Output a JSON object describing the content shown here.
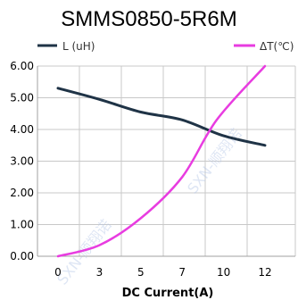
{
  "chart_data": {
    "type": "line",
    "title": "SMMS0850-5R6M",
    "xlabel": "DC Current(A)",
    "ylabel": "",
    "x_ticks": [
      "0",
      "3",
      "5",
      "7",
      "10",
      "12"
    ],
    "y_ticks": [
      "0.00",
      "1.00",
      "2.00",
      "3.00",
      "4.00",
      "5.00",
      "6.00"
    ],
    "ylim": [
      0,
      6
    ],
    "grid": true,
    "legend_position": "top",
    "series": [
      {
        "name": "L (uH)",
        "color": "#1f3346",
        "x": [
          0,
          3,
          5,
          7,
          10,
          12
        ],
        "values": [
          5.3,
          4.95,
          4.55,
          4.3,
          3.8,
          3.5
        ]
      },
      {
        "name": "ΔT(℃)",
        "color": "#e83ce0",
        "x": [
          0,
          3,
          5,
          7,
          9.5,
          12
        ],
        "values": [
          0.0,
          0.35,
          1.2,
          2.5,
          4.3,
          6.0
        ]
      }
    ],
    "watermark": "SXN-顺翔诺"
  },
  "colors": {
    "grid": "#c8c8c8",
    "axis": "#a0a0a0"
  }
}
